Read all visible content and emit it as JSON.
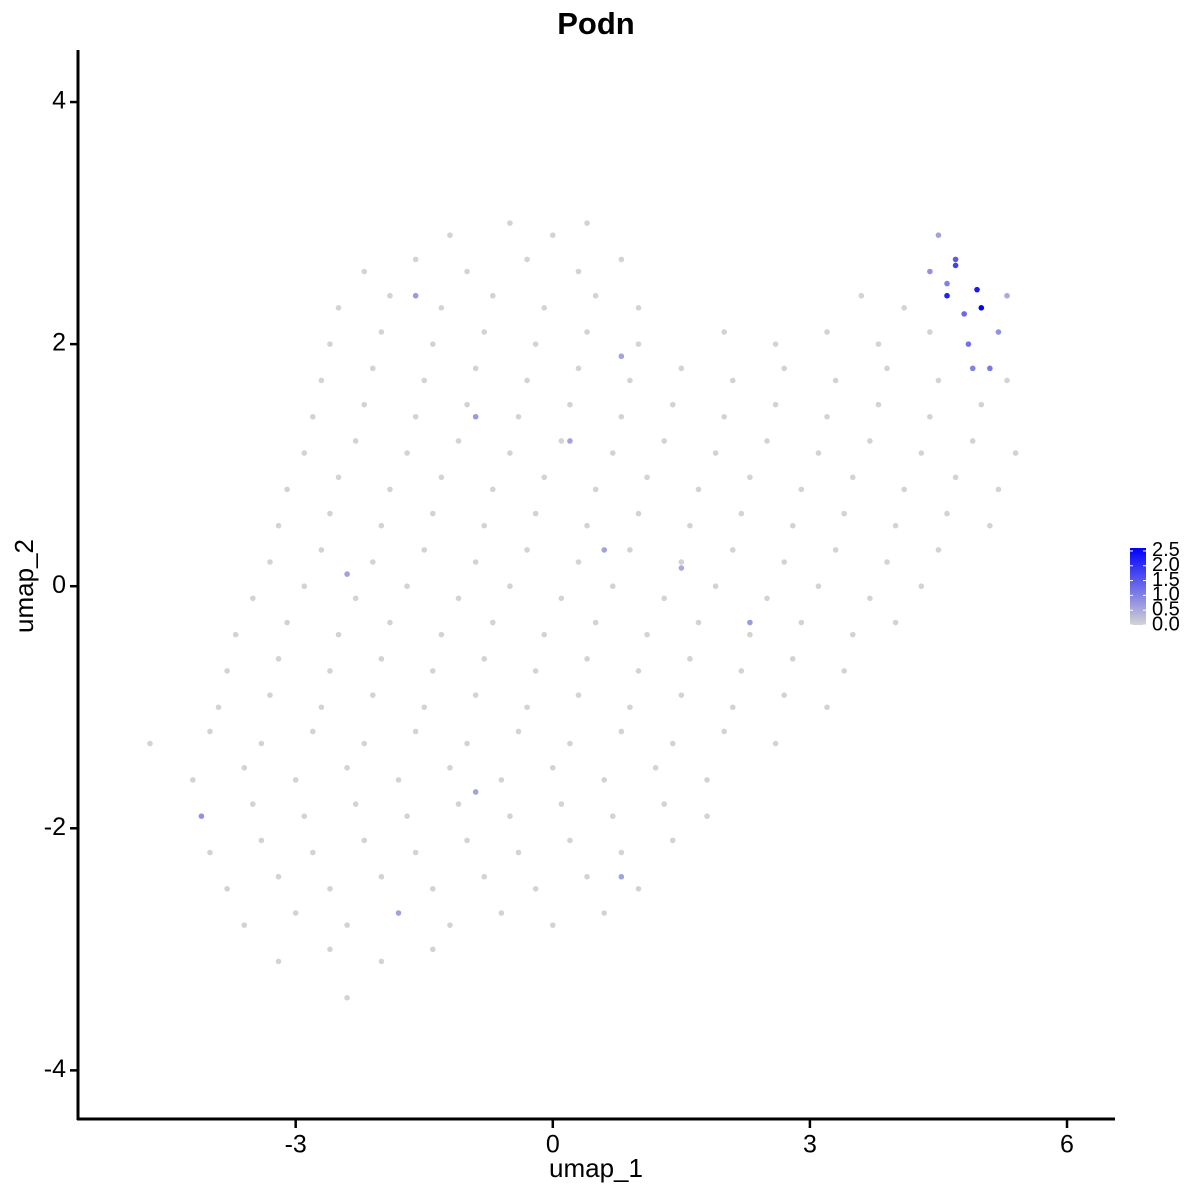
{
  "chart_data": {
    "type": "scatter",
    "title": "Podn",
    "x_label": "umap_1",
    "y_label": "umap_2",
    "x": [
      -1.2,
      -0.5,
      0.0,
      0.4,
      4.5,
      -2.2,
      -1.6,
      -1.0,
      -0.3,
      0.3,
      0.8,
      4.4,
      4.7,
      -2.5,
      -1.9,
      -1.3,
      -0.7,
      -0.1,
      0.5,
      1.0,
      3.6,
      4.1,
      4.6,
      5.0,
      5.3,
      -2.6,
      -2.0,
      -1.4,
      -0.8,
      -0.2,
      0.4,
      1.0,
      2.0,
      2.6,
      3.2,
      3.8,
      4.4,
      4.85,
      5.2,
      -2.7,
      -2.1,
      -1.5,
      -0.9,
      -0.3,
      0.3,
      0.9,
      1.5,
      2.1,
      2.7,
      3.3,
      3.9,
      4.5,
      4.9,
      5.3,
      -2.8,
      -2.2,
      -1.6,
      -1.0,
      -0.4,
      0.2,
      0.8,
      1.4,
      2.0,
      2.6,
      3.2,
      3.8,
      4.4,
      5.0,
      -2.9,
      -2.3,
      -1.7,
      -1.1,
      -0.5,
      0.1,
      0.7,
      1.3,
      1.9,
      2.5,
      3.1,
      3.7,
      4.3,
      4.9,
      5.4,
      -3.1,
      -2.5,
      -1.9,
      -1.3,
      -0.7,
      -0.1,
      0.5,
      1.1,
      1.7,
      2.3,
      2.9,
      3.5,
      4.1,
      4.7,
      5.2,
      -3.2,
      -2.6,
      -2.0,
      -1.4,
      -0.8,
      -0.2,
      0.4,
      1.0,
      1.6,
      2.2,
      2.8,
      3.4,
      4.0,
      4.6,
      5.1,
      -3.3,
      -2.7,
      -2.1,
      -1.5,
      -0.9,
      -0.3,
      0.3,
      0.9,
      1.5,
      2.1,
      2.7,
      3.3,
      3.9,
      4.5,
      -3.5,
      -2.9,
      -2.3,
      -1.7,
      -1.1,
      -0.5,
      0.1,
      0.7,
      1.3,
      1.9,
      2.5,
      3.1,
      3.7,
      4.3,
      -3.7,
      -3.1,
      -2.5,
      -1.9,
      -1.3,
      -0.7,
      -0.1,
      0.5,
      1.1,
      1.7,
      2.3,
      2.9,
      3.5,
      4.0,
      -3.8,
      -3.2,
      -2.6,
      -2.0,
      -1.4,
      -0.8,
      -0.2,
      0.4,
      1.0,
      1.6,
      2.2,
      2.8,
      3.4,
      -3.9,
      -3.3,
      -2.7,
      -2.1,
      -1.5,
      -0.9,
      -0.3,
      0.3,
      0.9,
      1.5,
      2.1,
      2.7,
      3.2,
      -4.7,
      -4.0,
      -3.4,
      -2.8,
      -2.2,
      -1.6,
      -1.0,
      -0.4,
      0.2,
      0.8,
      1.4,
      2.0,
      2.6,
      -4.2,
      -3.6,
      -3.0,
      -2.4,
      -1.8,
      -1.2,
      -0.6,
      0.0,
      0.6,
      1.2,
      1.8,
      -4.1,
      -3.5,
      -2.9,
      -2.3,
      -1.7,
      -1.1,
      -0.5,
      0.1,
      0.7,
      1.3,
      1.8,
      -4.0,
      -3.4,
      -2.8,
      -2.2,
      -1.6,
      -1.0,
      -0.4,
      0.2,
      0.8,
      1.4,
      -3.8,
      -3.2,
      -2.6,
      -2.0,
      -1.4,
      -0.8,
      -0.2,
      0.4,
      1.0,
      -3.6,
      -3.0,
      -2.4,
      -1.8,
      -1.2,
      -0.6,
      0.0,
      0.6,
      -3.2,
      -2.6,
      -2.0,
      -1.4,
      -2.4,
      0.2,
      -0.9,
      0.6,
      2.3,
      1.5,
      -0.9,
      0.8,
      -2.4,
      0.8,
      -1.6,
      4.8,
      4.95,
      4.7,
      5.1,
      4.6
    ],
    "values": [
      2.9,
      3.0,
      2.9,
      3.0,
      2.9,
      2.6,
      2.7,
      2.6,
      2.7,
      2.6,
      2.7,
      2.6,
      2.7,
      2.3,
      2.4,
      2.3,
      2.4,
      2.3,
      2.4,
      2.3,
      2.4,
      2.3,
      2.4,
      2.3,
      2.4,
      2.0,
      2.1,
      2.0,
      2.1,
      2.0,
      2.1,
      2.0,
      2.1,
      2.0,
      2.1,
      2.0,
      2.1,
      2.0,
      2.1,
      1.7,
      1.8,
      1.7,
      1.8,
      1.7,
      1.8,
      1.7,
      1.8,
      1.7,
      1.8,
      1.7,
      1.8,
      1.7,
      1.8,
      1.7,
      1.4,
      1.5,
      1.4,
      1.5,
      1.4,
      1.5,
      1.4,
      1.5,
      1.4,
      1.5,
      1.4,
      1.5,
      1.4,
      1.5,
      1.1,
      1.2,
      1.1,
      1.2,
      1.1,
      1.2,
      1.1,
      1.2,
      1.1,
      1.2,
      1.1,
      1.2,
      1.1,
      1.2,
      1.1,
      0.8,
      0.9,
      0.8,
      0.9,
      0.8,
      0.9,
      0.8,
      0.9,
      0.8,
      0.9,
      0.8,
      0.9,
      0.8,
      0.9,
      0.8,
      0.5,
      0.6,
      0.5,
      0.6,
      0.5,
      0.6,
      0.5,
      0.6,
      0.5,
      0.6,
      0.5,
      0.6,
      0.5,
      0.6,
      0.5,
      0.2,
      0.3,
      0.2,
      0.3,
      0.2,
      0.3,
      0.2,
      0.3,
      0.2,
      0.3,
      0.2,
      0.3,
      0.2,
      0.3,
      -0.1,
      0,
      -0.1,
      0,
      -0.1,
      0,
      -0.1,
      0,
      -0.1,
      0,
      -0.1,
      0,
      -0.1,
      0,
      -0.4,
      -0.3,
      -0.4,
      -0.3,
      -0.4,
      -0.3,
      -0.4,
      -0.3,
      -0.4,
      -0.3,
      -0.4,
      -0.3,
      -0.4,
      -0.3,
      -0.7,
      -0.6,
      -0.7,
      -0.6,
      -0.7,
      -0.6,
      -0.7,
      -0.6,
      -0.7,
      -0.6,
      -0.7,
      -0.6,
      -0.7,
      -1.0,
      -0.9,
      -1.0,
      -0.9,
      -1.0,
      -0.9,
      -1.0,
      -0.9,
      -1.0,
      -0.9,
      -1.0,
      -0.9,
      -1.0,
      -1.3,
      -1.2,
      -1.3,
      -1.2,
      -1.3,
      -1.2,
      -1.3,
      -1.2,
      -1.3,
      -1.2,
      -1.3,
      -1.2,
      -1.3,
      -1.6,
      -1.5,
      -1.6,
      -1.5,
      -1.6,
      -1.5,
      -1.6,
      -1.5,
      -1.6,
      -1.5,
      -1.6,
      -1.9,
      -1.8,
      -1.9,
      -1.8,
      -1.9,
      -1.8,
      -1.9,
      -1.8,
      -1.9,
      -1.8,
      -1.9,
      -2.2,
      -2.1,
      -2.2,
      -2.1,
      -2.2,
      -2.1,
      -2.2,
      -2.1,
      -2.2,
      -2.1,
      -2.5,
      -2.4,
      -2.5,
      -2.4,
      -2.5,
      -2.4,
      -2.5,
      -2.4,
      -2.5,
      -2.8,
      -2.7,
      -2.8,
      -2.7,
      -2.8,
      -2.7,
      -2.8,
      -2.7,
      -3.1,
      -3.0,
      -3.1,
      -3.0,
      -3.4,
      1.2,
      1.4,
      0.3,
      -0.3,
      0.15,
      -1.7,
      -2.4,
      0.1,
      1.9,
      2.4,
      2.25,
      2.45,
      2.65,
      1.8,
      2.5
    ],
    "expression": [
      0,
      0,
      0,
      0,
      0.6,
      0,
      0,
      0,
      0,
      0,
      0,
      0.8,
      1.5,
      0,
      0,
      0,
      0,
      0,
      0,
      0,
      0,
      0,
      2.2,
      2.6,
      0.5,
      0,
      0,
      0,
      0,
      0,
      0,
      0,
      0,
      0,
      0,
      0,
      0,
      1.2,
      0.8,
      0,
      0,
      0,
      0,
      0,
      0,
      0,
      0,
      0,
      0,
      0,
      0,
      0,
      1.0,
      0,
      0,
      0,
      0,
      0,
      0,
      0,
      0,
      0,
      0,
      0,
      0,
      0,
      0,
      0,
      0,
      0,
      0,
      0,
      0,
      0,
      0,
      0,
      0,
      0,
      0,
      0,
      0,
      0,
      0,
      0,
      0,
      0,
      0,
      0,
      0,
      0,
      0,
      0,
      0,
      0,
      0,
      0,
      0,
      0,
      0,
      0,
      0,
      0,
      0,
      0,
      0,
      0,
      0,
      0,
      0,
      0,
      0,
      0,
      0,
      0,
      0,
      0,
      0,
      0,
      0,
      0,
      0,
      0,
      0,
      0,
      0,
      0,
      0,
      0,
      0,
      0,
      0,
      0,
      0,
      0,
      0,
      0,
      0,
      0,
      0,
      0,
      0,
      0,
      0,
      0,
      0,
      0,
      0,
      0,
      0,
      0,
      0,
      0,
      0,
      0,
      0,
      0,
      0,
      0,
      0,
      0,
      0,
      0,
      0,
      0,
      0,
      0,
      0,
      0,
      0,
      0,
      0,
      0,
      0,
      0,
      0,
      0,
      0,
      0,
      0,
      0,
      0,
      0,
      0,
      0,
      0,
      0,
      0,
      0,
      0,
      0,
      0,
      0,
      0,
      0,
      0,
      0,
      0,
      0,
      0,
      0,
      0,
      0,
      0,
      0,
      0,
      0.8,
      0,
      0,
      0,
      0,
      0,
      0,
      0,
      0,
      0,
      0,
      0,
      0,
      0,
      0,
      0,
      0,
      0,
      0,
      0,
      0,
      0,
      0,
      0,
      0,
      0,
      0,
      0,
      0,
      0,
      0,
      0,
      0,
      0.6,
      0,
      0,
      0,
      0,
      0,
      0,
      0,
      0,
      0,
      0.6,
      0.7,
      0.6,
      0.7,
      0.5,
      0.6,
      0.6,
      0.6,
      0.6,
      0.7,
      1.3,
      2.3,
      1.8,
      1.1,
      1.0
    ],
    "xlim": [
      -5.54,
      6.56
    ],
    "ylim": [
      -4.41,
      4.43
    ],
    "xticks": [
      -3,
      0,
      3,
      6
    ],
    "yticks": [
      -4,
      -2,
      0,
      2,
      4
    ],
    "colorlim": [
      0,
      2.6
    ],
    "color_low": "#d3d3d3",
    "color_high": "#0000ff",
    "colorticks": [
      {
        "value": 0,
        "label": "0.0"
      },
      {
        "value": 0.5,
        "label": "0.5"
      },
      {
        "value": 1,
        "label": "1.0"
      },
      {
        "value": 1.5,
        "label": "1.5"
      },
      {
        "value": 2,
        "label": "2.0"
      },
      {
        "value": 2.5,
        "label": "2.5"
      }
    ],
    "grid": false
  }
}
